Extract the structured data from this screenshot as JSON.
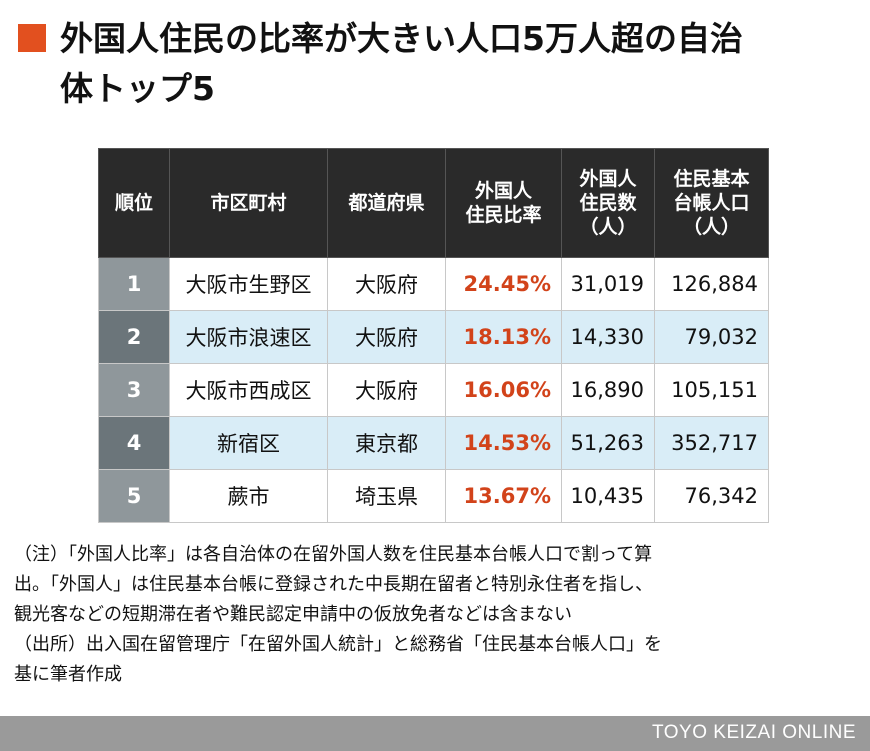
{
  "title": {
    "line1": "外国人住民の比率が大きい人口5万人超の自治",
    "line2": "体トップ5"
  },
  "colors": {
    "accent": "#e2501f",
    "ratio_text": "#d2431a",
    "header_bg": "#2a2a2a",
    "row_alt_bg": "#d9edf7",
    "footer_bg": "#9a9a9a"
  },
  "table": {
    "headers": [
      [
        "順位"
      ],
      [
        "市区町村"
      ],
      [
        "都道府県"
      ],
      [
        "外国人",
        "住民比率"
      ],
      [
        "外国人",
        "住民数",
        "（人）"
      ],
      [
        "住民基本",
        "台帳人口",
        "（人）"
      ]
    ],
    "rows": [
      {
        "rank": "1",
        "city": "大阪市生野区",
        "pref": "大阪府",
        "ratio": "24.45%",
        "foreign": "31,019",
        "base": "126,884"
      },
      {
        "rank": "2",
        "city": "大阪市浪速区",
        "pref": "大阪府",
        "ratio": "18.13%",
        "foreign": "14,330",
        "base": "79,032"
      },
      {
        "rank": "3",
        "city": "大阪市西成区",
        "pref": "大阪府",
        "ratio": "16.06%",
        "foreign": "16,890",
        "base": "105,151"
      },
      {
        "rank": "4",
        "city": "新宿区",
        "pref": "東京都",
        "ratio": "14.53%",
        "foreign": "51,263",
        "base": "352,717"
      },
      {
        "rank": "5",
        "city": "蕨市",
        "pref": "埼玉県",
        "ratio": "13.67%",
        "foreign": "10,435",
        "base": "76,342"
      }
    ]
  },
  "notes": [
    "（注）「外国人比率」は各自治体の在留外国人数を住民基本台帳人口で割って算",
    "出。「外国人」は住民基本台帳に登録された中長期在留者と特別永住者を指し、",
    "観光客などの短期滞在者や難民認定申請中の仮放免者などは含まない",
    "（出所）出入国在留管理庁「在留外国人統計」と総務省「住民基本台帳人口」を",
    "基に筆者作成"
  ],
  "footer": "TOYO KEIZAI ONLINE"
}
